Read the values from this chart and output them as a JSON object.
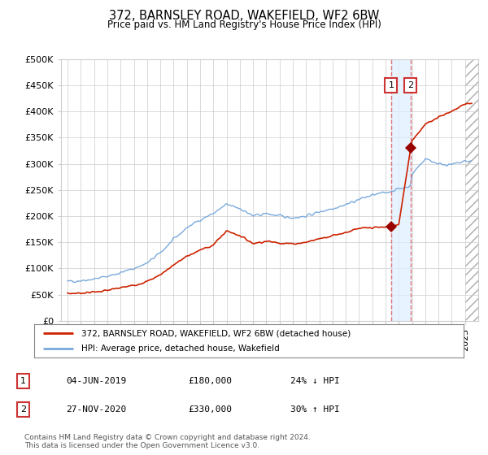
{
  "title": "372, BARNSLEY ROAD, WAKEFIELD, WF2 6BW",
  "subtitle": "Price paid vs. HM Land Registry's House Price Index (HPI)",
  "legend_line1": "372, BARNSLEY ROAD, WAKEFIELD, WF2 6BW (detached house)",
  "legend_line2": "HPI: Average price, detached house, Wakefield",
  "transaction1_date": "04-JUN-2019",
  "transaction1_price": "£180,000",
  "transaction1_hpi": "24% ↓ HPI",
  "transaction2_date": "27-NOV-2020",
  "transaction2_price": "£330,000",
  "transaction2_hpi": "30% ↑ HPI",
  "footer": "Contains HM Land Registry data © Crown copyright and database right 2024.\nThis data is licensed under the Open Government Licence v3.0.",
  "hpi_color": "#7aaadd",
  "price_paid_color": "#cc2200",
  "vline_color": "#dd6666",
  "shade_color": "#ddeeff",
  "ylim": [
    0,
    500000
  ],
  "yticks": [
    0,
    50000,
    100000,
    150000,
    200000,
    250000,
    300000,
    350000,
    400000,
    450000,
    500000
  ],
  "transaction1_x": 2019.42,
  "transaction1_y": 180000,
  "transaction2_x": 2020.9,
  "transaction2_y": 330000,
  "xlim_left": 1994.5,
  "xlim_right": 2026.0
}
